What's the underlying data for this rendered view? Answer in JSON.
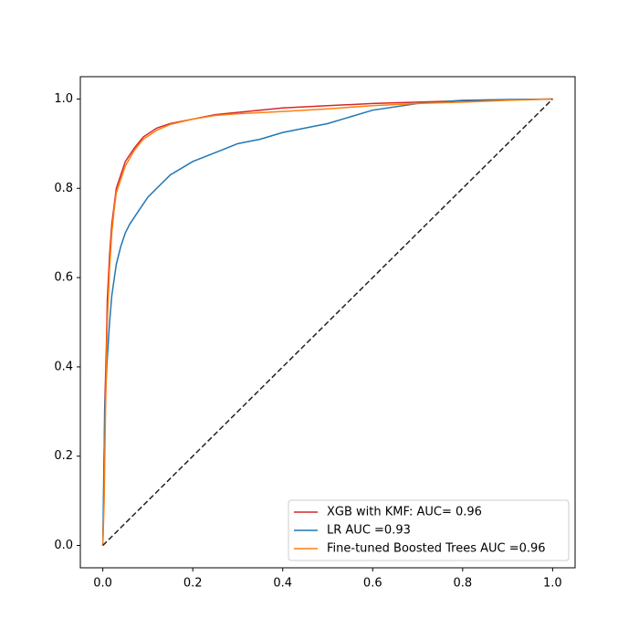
{
  "chart_data": {
    "type": "line",
    "xlim": [
      -0.05,
      1.05
    ],
    "ylim": [
      -0.05,
      1.05
    ],
    "xticks": [
      {
        "value": 0,
        "label": "0.0"
      },
      0.2,
      0.4,
      0.6,
      0.8,
      {
        "value": 1,
        "label": "1.0"
      }
    ],
    "yticks": [
      {
        "value": 0,
        "label": "0.0"
      },
      0.2,
      0.4,
      0.6,
      0.8,
      {
        "value": 1,
        "label": "1.0"
      }
    ],
    "grid": false,
    "legend": "lower right",
    "series": [
      {
        "name": "XGB with KMF: AUC= 0.96",
        "color": "#d62728",
        "x": [
          0,
          0.002,
          0.004,
          0.008,
          0.01,
          0.015,
          0.02,
          0.025,
          0.03,
          0.04,
          0.05,
          0.07,
          0.09,
          0.12,
          0.15,
          0.2,
          0.25,
          0.3,
          0.4,
          0.5,
          0.6,
          0.7,
          0.8,
          0.9,
          1
        ],
        "values": [
          0,
          0.1,
          0.3,
          0.45,
          0.55,
          0.65,
          0.72,
          0.76,
          0.8,
          0.83,
          0.86,
          0.89,
          0.915,
          0.935,
          0.945,
          0.955,
          0.965,
          0.97,
          0.98,
          0.985,
          0.99,
          0.993,
          0.996,
          0.998,
          1
        ]
      },
      {
        "name": "LR AUC =0.93",
        "color": "#1f77b4",
        "x": [
          0,
          0.002,
          0.005,
          0.01,
          0.015,
          0.02,
          0.03,
          0.04,
          0.05,
          0.06,
          0.08,
          0.1,
          0.12,
          0.15,
          0.2,
          0.25,
          0.3,
          0.35,
          0.4,
          0.45,
          0.5,
          0.55,
          0.6,
          0.7,
          0.8,
          0.9,
          1
        ],
        "values": [
          0,
          0.15,
          0.32,
          0.42,
          0.5,
          0.56,
          0.63,
          0.67,
          0.7,
          0.72,
          0.75,
          0.78,
          0.8,
          0.83,
          0.86,
          0.88,
          0.9,
          0.91,
          0.925,
          0.935,
          0.945,
          0.96,
          0.975,
          0.99,
          0.997,
          0.999,
          1
        ]
      },
      {
        "name": "Fine-tuned Boosted Trees AUC =0.96",
        "color": "#ff7f0e",
        "x": [
          0,
          0.003,
          0.006,
          0.01,
          0.015,
          0.02,
          0.025,
          0.03,
          0.04,
          0.05,
          0.07,
          0.09,
          0.12,
          0.15,
          0.2,
          0.25,
          0.3,
          0.4,
          0.5,
          0.6,
          0.7,
          0.8,
          0.9,
          1
        ],
        "values": [
          0,
          0.1,
          0.3,
          0.5,
          0.62,
          0.7,
          0.75,
          0.79,
          0.82,
          0.85,
          0.885,
          0.91,
          0.93,
          0.943,
          0.955,
          0.963,
          0.967,
          0.972,
          0.978,
          0.985,
          0.99,
          0.993,
          0.997,
          1
        ]
      },
      {
        "color": "#222222",
        "style": "dashed",
        "x": [
          0,
          1
        ],
        "values": [
          0,
          1
        ]
      }
    ]
  }
}
